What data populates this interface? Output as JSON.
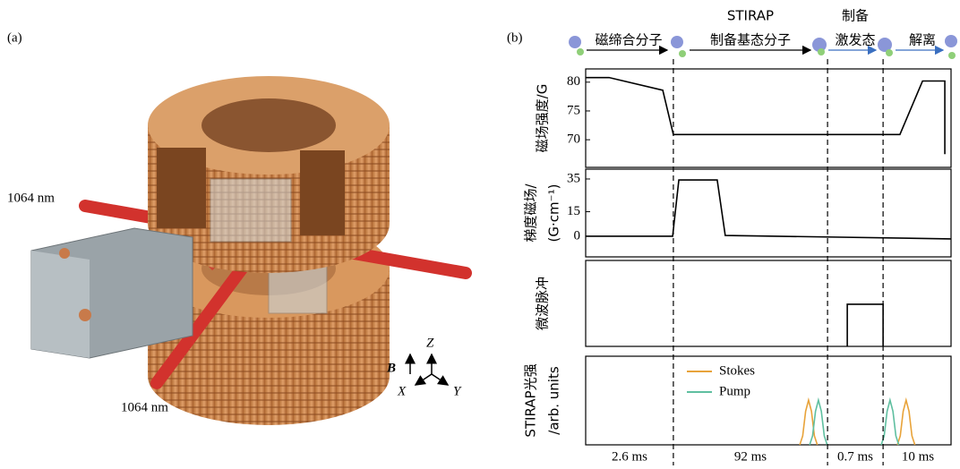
{
  "panel_a": {
    "label": "(a)",
    "beam_labels": [
      "1064 nm",
      "1064 nm"
    ],
    "field_label": "B",
    "axes": [
      "Z",
      "X",
      "Y"
    ]
  },
  "panel_b": {
    "label": "(b)",
    "stages": [
      [
        "磁缔合分子"
      ],
      [
        "STIRAP",
        "制备基态分子"
      ],
      [
        "制备",
        "激发态"
      ],
      [
        "解离"
      ]
    ],
    "durations": [
      "2.6 ms",
      "92 ms",
      "0.7 ms",
      "10 ms"
    ],
    "boundaries": [
      24.0,
      66.2,
      81.4
    ]
  },
  "chart_data": [
    {
      "type": "line",
      "y_label": [
        "磁场强度/G"
      ],
      "xlim": [
        0,
        100
      ],
      "ylim": [
        65.2,
        82.3
      ],
      "yticks": [
        70,
        75,
        80
      ],
      "color": "#000000",
      "x": [
        0,
        6.4,
        21.1,
        24.0,
        86.0,
        92.2,
        98.3,
        98.3
      ],
      "values": [
        80.8,
        80.8,
        78.6,
        70.9,
        70.9,
        80.2,
        80.2,
        67.5
      ]
    },
    {
      "type": "line",
      "y_label": [
        "梯度磁场/",
        "(G·cm⁻¹)"
      ],
      "xlim": [
        0,
        100
      ],
      "ylim": [
        -12.6,
        41.0
      ],
      "yticks": [
        0,
        15,
        35
      ],
      "color": "#000000",
      "x": [
        0,
        23.8,
        25.5,
        36.0,
        38.2,
        100
      ],
      "values": [
        0,
        0,
        34.4,
        34.4,
        0.5,
        -1.6
      ]
    },
    {
      "type": "line",
      "y_label": [
        "微波脉冲"
      ],
      "xlim": [
        0,
        100
      ],
      "ylim": [
        0,
        2.04
      ],
      "color": "#000000",
      "x": [
        71.6,
        71.6,
        81.4,
        81.4
      ],
      "values": [
        0,
        1,
        1,
        0
      ]
    },
    {
      "type": "line",
      "y_label": [
        "STIRAP光强",
        "/arb. units"
      ],
      "xlim": [
        0,
        100
      ],
      "ylim": [
        0,
        1.98
      ],
      "series": [
        {
          "name": "Stokes",
          "color": "#e8a33a",
          "x": [
            58.6,
            59.4,
            60.2,
            61.0,
            61.8,
            62.6,
            63.4,
            null,
            85.3,
            86.1,
            86.9,
            87.7,
            88.5,
            89.3,
            90.1
          ],
          "values": [
            0,
            0.2,
            0.75,
            1,
            0.75,
            0.2,
            0,
            null,
            0,
            0.2,
            0.75,
            1,
            0.75,
            0.2,
            0
          ]
        },
        {
          "name": "Pump",
          "color": "#5fbfa0",
          "x": [
            61.3,
            62.1,
            62.9,
            63.7,
            64.5,
            65.3,
            66.1,
            null,
            80.9,
            81.7,
            82.5,
            83.3,
            84.1,
            84.9,
            85.7
          ],
          "values": [
            0,
            0.2,
            0.75,
            1,
            0.75,
            0.2,
            0,
            null,
            0,
            0.2,
            0.75,
            1,
            0.75,
            0.2,
            0
          ]
        }
      ]
    }
  ]
}
